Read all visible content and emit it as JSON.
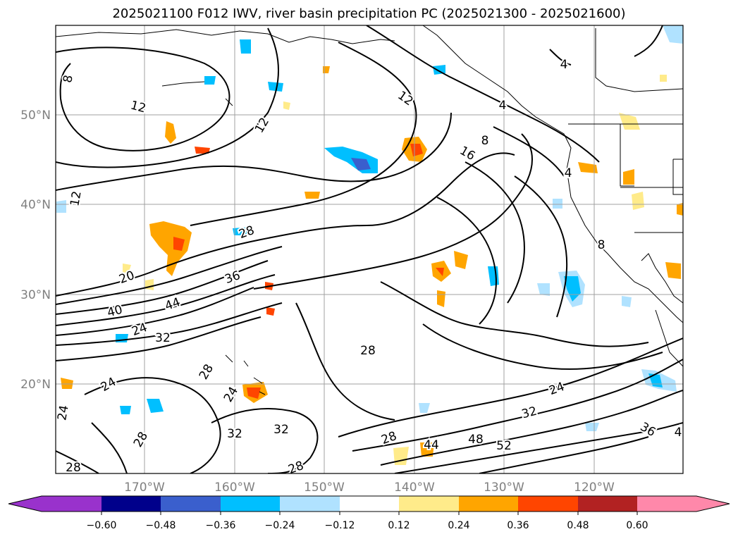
{
  "title": "2025021100 F012 IWV, river basin precipitation PC (2025021300 - 2025021600)",
  "lat_labels": [
    "50°N",
    "40°N",
    "30°N",
    "20°N"
  ],
  "lon_labels": [
    "170°W",
    "160°W",
    "150°W",
    "140°W",
    "130°W",
    "120°W"
  ],
  "colorbar": {
    "ticks": [
      "−0.60",
      "−0.48",
      "−0.36",
      "−0.24",
      "−0.12",
      "0.12",
      "0.24",
      "0.36",
      "0.48",
      "0.60"
    ],
    "colors": {
      "under": "#9932cc",
      "b1": "#00008b",
      "b2": "#3a5fcd",
      "b3": "#00bfff",
      "b4": "#b0e2ff",
      "b5": "#ffffff",
      "b6": "#ffeb8a",
      "b7": "#ffa500",
      "b8": "#ff4500",
      "b9": "#b22222",
      "over": "#ff88aa"
    }
  },
  "contour_labels": [
    "8",
    "12",
    "12",
    "12",
    "12",
    "4",
    "8",
    "16",
    "4",
    "4",
    "8",
    "20",
    "28",
    "36",
    "40",
    "44",
    "24",
    "32",
    "28",
    "28",
    "24",
    "24",
    "32",
    "32",
    "28",
    "28",
    "28",
    "24",
    "32",
    "36",
    "44",
    "48",
    "52",
    "28",
    "24",
    "4"
  ],
  "colors": {
    "grid": "#a0a0a0",
    "contour": "#000000",
    "tick_text": "#808080"
  }
}
